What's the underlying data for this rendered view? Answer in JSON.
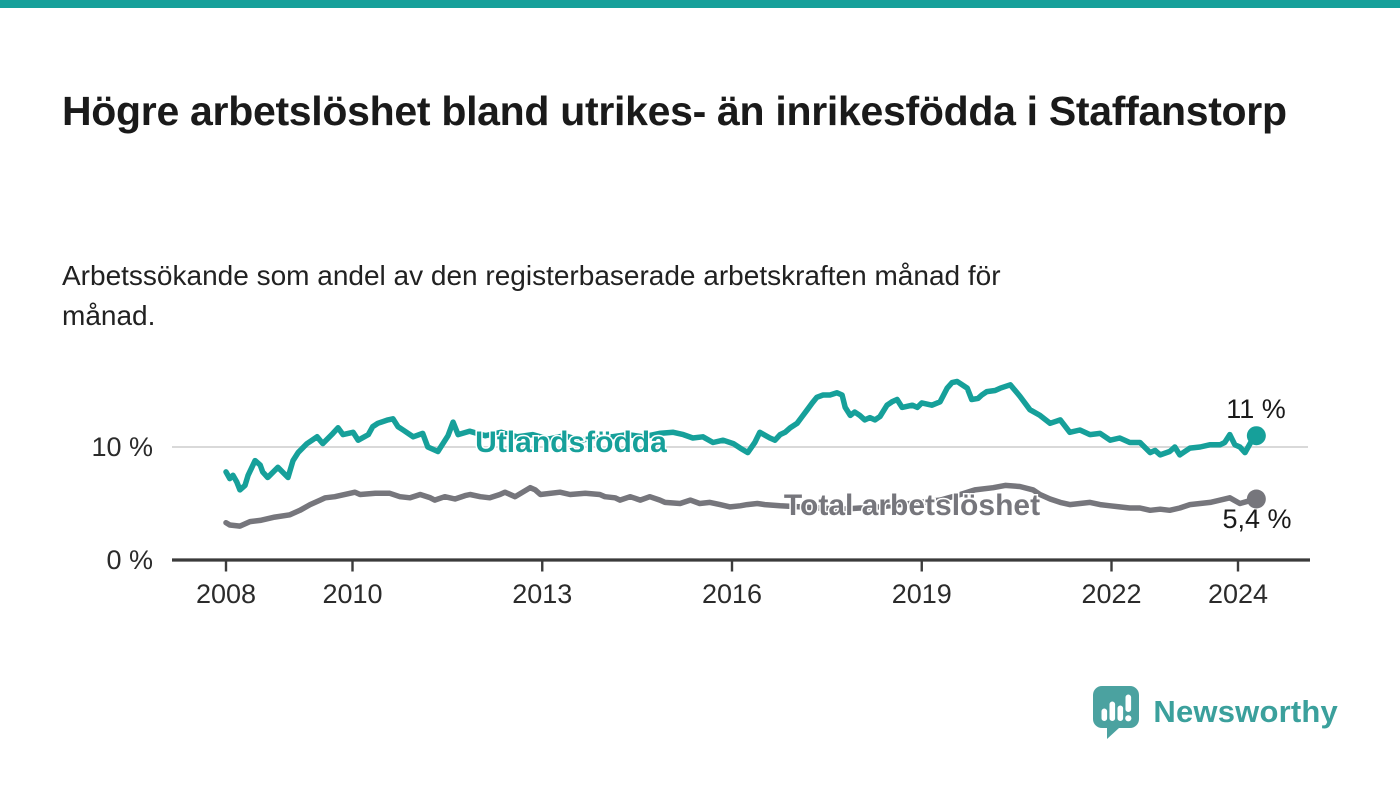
{
  "page": {
    "title": "Högre arbetslöshet bland utrikes- än inrikesfödda i Staffanstorp",
    "subtitle": "Arbetssökande som andel av den registerbaserade arbetskraften månad för månad.",
    "accent_color": "#16a09a"
  },
  "branding": {
    "logo_text": "Newsworthy",
    "logo_color": "#3ba09c",
    "logo_bubble_color": "#4ba2a0"
  },
  "chart_data": {
    "type": "line",
    "title": "Högre arbetslöshet bland utrikes- än inrikesfödda i Staffanstorp",
    "subtitle": "Arbetssökande som andel av den registerbaserade arbetskraften månad för månad.",
    "grid": "horizontal-only",
    "x_axis": {
      "ticks": [
        2008,
        2010,
        2013,
        2016,
        2019,
        2022,
        2024
      ],
      "range": [
        2008,
        2025.1
      ]
    },
    "y_axis": {
      "unit": "%",
      "ticks": [
        {
          "label": "0 %",
          "value": 0
        },
        {
          "label": "10 %",
          "value": 10
        }
      ],
      "range": [
        0,
        17.7
      ]
    },
    "series": [
      {
        "id": "total-arbetsloshet",
        "name": "Total arbetslöshet",
        "color": "#76767c",
        "end_label": "5,4 %",
        "end_value": 5.4,
        "points": [
          [
            2008.0,
            3.3
          ],
          [
            2008.06,
            3.1
          ],
          [
            2008.22,
            3.0
          ],
          [
            2008.38,
            3.4
          ],
          [
            2008.54,
            3.5
          ],
          [
            2008.77,
            3.8
          ],
          [
            2009.01,
            4.0
          ],
          [
            2009.17,
            4.4
          ],
          [
            2009.33,
            4.9
          ],
          [
            2009.49,
            5.3
          ],
          [
            2009.57,
            5.5
          ],
          [
            2009.72,
            5.6
          ],
          [
            2009.96,
            5.9
          ],
          [
            2010.04,
            6.0
          ],
          [
            2010.12,
            5.8
          ],
          [
            2010.36,
            5.9
          ],
          [
            2010.59,
            5.9
          ],
          [
            2010.75,
            5.6
          ],
          [
            2010.91,
            5.5
          ],
          [
            2011.07,
            5.8
          ],
          [
            2011.23,
            5.5
          ],
          [
            2011.3,
            5.3
          ],
          [
            2011.46,
            5.6
          ],
          [
            2011.62,
            5.4
          ],
          [
            2011.78,
            5.7
          ],
          [
            2011.86,
            5.8
          ],
          [
            2012.02,
            5.6
          ],
          [
            2012.17,
            5.5
          ],
          [
            2012.33,
            5.8
          ],
          [
            2012.41,
            6.0
          ],
          [
            2012.57,
            5.6
          ],
          [
            2012.81,
            6.4
          ],
          [
            2012.89,
            6.2
          ],
          [
            2012.97,
            5.8
          ],
          [
            2013.28,
            6.0
          ],
          [
            2013.44,
            5.8
          ],
          [
            2013.68,
            5.9
          ],
          [
            2013.91,
            5.8
          ],
          [
            2013.99,
            5.6
          ],
          [
            2014.15,
            5.5
          ],
          [
            2014.23,
            5.3
          ],
          [
            2014.39,
            5.6
          ],
          [
            2014.55,
            5.3
          ],
          [
            2014.7,
            5.6
          ],
          [
            2014.86,
            5.3
          ],
          [
            2014.94,
            5.1
          ],
          [
            2015.18,
            5.0
          ],
          [
            2015.34,
            5.3
          ],
          [
            2015.49,
            5.0
          ],
          [
            2015.65,
            5.1
          ],
          [
            2015.81,
            4.9
          ],
          [
            2015.97,
            4.7
          ],
          [
            2016.13,
            4.8
          ],
          [
            2016.24,
            4.9
          ],
          [
            2016.4,
            5.0
          ],
          [
            2016.52,
            4.9
          ],
          [
            2016.76,
            4.8
          ],
          [
            2017.08,
            4.7
          ],
          [
            2017.39,
            4.6
          ],
          [
            2017.71,
            4.5
          ],
          [
            2018.03,
            4.6
          ],
          [
            2018.34,
            4.7
          ],
          [
            2018.66,
            4.9
          ],
          [
            2018.97,
            5.1
          ],
          [
            2019.29,
            5.3
          ],
          [
            2019.61,
            5.8
          ],
          [
            2019.84,
            6.2
          ],
          [
            2020.13,
            6.4
          ],
          [
            2020.32,
            6.6
          ],
          [
            2020.55,
            6.5
          ],
          [
            2020.76,
            6.2
          ],
          [
            2020.87,
            5.8
          ],
          [
            2021.03,
            5.4
          ],
          [
            2021.19,
            5.1
          ],
          [
            2021.34,
            4.9
          ],
          [
            2021.5,
            5.0
          ],
          [
            2021.66,
            5.1
          ],
          [
            2021.82,
            4.9
          ],
          [
            2021.98,
            4.8
          ],
          [
            2022.13,
            4.7
          ],
          [
            2022.29,
            4.6
          ],
          [
            2022.45,
            4.6
          ],
          [
            2022.61,
            4.4
          ],
          [
            2022.77,
            4.5
          ],
          [
            2022.92,
            4.4
          ],
          [
            2023.08,
            4.6
          ],
          [
            2023.24,
            4.9
          ],
          [
            2023.4,
            5.0
          ],
          [
            2023.56,
            5.1
          ],
          [
            2023.72,
            5.3
          ],
          [
            2023.87,
            5.5
          ],
          [
            2024.03,
            5.0
          ],
          [
            2024.16,
            5.2
          ],
          [
            2024.29,
            5.4
          ]
        ]
      },
      {
        "id": "utlandsfodda",
        "name": "Utlandsfödda",
        "color": "#16a09a",
        "end_label": "11 %",
        "end_value": 11.0,
        "points": [
          [
            2008.0,
            7.8
          ],
          [
            2008.06,
            7.2
          ],
          [
            2008.11,
            7.5
          ],
          [
            2008.17,
            6.9
          ],
          [
            2008.22,
            6.2
          ],
          [
            2008.3,
            6.6
          ],
          [
            2008.35,
            7.5
          ],
          [
            2008.46,
            8.8
          ],
          [
            2008.54,
            8.4
          ],
          [
            2008.58,
            7.8
          ],
          [
            2008.66,
            7.3
          ],
          [
            2008.82,
            8.2
          ],
          [
            2008.98,
            7.3
          ],
          [
            2009.06,
            8.8
          ],
          [
            2009.14,
            9.5
          ],
          [
            2009.28,
            10.3
          ],
          [
            2009.44,
            10.9
          ],
          [
            2009.53,
            10.3
          ],
          [
            2009.69,
            11.2
          ],
          [
            2009.77,
            11.7
          ],
          [
            2009.85,
            11.1
          ],
          [
            2010.01,
            11.3
          ],
          [
            2010.09,
            10.6
          ],
          [
            2010.25,
            11.1
          ],
          [
            2010.32,
            11.8
          ],
          [
            2010.4,
            12.1
          ],
          [
            2010.56,
            12.4
          ],
          [
            2010.64,
            12.5
          ],
          [
            2010.72,
            11.8
          ],
          [
            2010.8,
            11.5
          ],
          [
            2010.96,
            10.9
          ],
          [
            2011.11,
            11.2
          ],
          [
            2011.19,
            10.0
          ],
          [
            2011.35,
            9.6
          ],
          [
            2011.51,
            11.0
          ],
          [
            2011.59,
            12.2
          ],
          [
            2011.67,
            11.1
          ],
          [
            2011.85,
            11.4
          ],
          [
            2012.1,
            11.0
          ],
          [
            2012.35,
            11.3
          ],
          [
            2012.6,
            10.9
          ],
          [
            2012.85,
            11.1
          ],
          [
            2013.1,
            10.7
          ],
          [
            2013.35,
            11.0
          ],
          [
            2013.6,
            10.6
          ],
          [
            2013.85,
            10.8
          ],
          [
            2014.1,
            10.9
          ],
          [
            2014.35,
            11.1
          ],
          [
            2014.6,
            10.9
          ],
          [
            2014.85,
            11.2
          ],
          [
            2015.07,
            11.3
          ],
          [
            2015.23,
            11.1
          ],
          [
            2015.38,
            10.8
          ],
          [
            2015.54,
            10.9
          ],
          [
            2015.7,
            10.4
          ],
          [
            2015.86,
            10.6
          ],
          [
            2016.02,
            10.3
          ],
          [
            2016.13,
            9.9
          ],
          [
            2016.25,
            9.5
          ],
          [
            2016.36,
            10.4
          ],
          [
            2016.44,
            11.3
          ],
          [
            2016.6,
            10.8
          ],
          [
            2016.68,
            10.6
          ],
          [
            2016.76,
            11.1
          ],
          [
            2016.84,
            11.3
          ],
          [
            2016.92,
            11.7
          ],
          [
            2017.03,
            12.1
          ],
          [
            2017.11,
            12.7
          ],
          [
            2017.19,
            13.3
          ],
          [
            2017.27,
            13.9
          ],
          [
            2017.34,
            14.4
          ],
          [
            2017.44,
            14.6
          ],
          [
            2017.55,
            14.6
          ],
          [
            2017.66,
            14.8
          ],
          [
            2017.74,
            14.6
          ],
          [
            2017.79,
            13.5
          ],
          [
            2017.87,
            12.8
          ],
          [
            2017.94,
            13.1
          ],
          [
            2018.02,
            12.8
          ],
          [
            2018.1,
            12.4
          ],
          [
            2018.18,
            12.6
          ],
          [
            2018.26,
            12.4
          ],
          [
            2018.34,
            12.7
          ],
          [
            2018.45,
            13.7
          ],
          [
            2018.53,
            14.0
          ],
          [
            2018.61,
            14.2
          ],
          [
            2018.69,
            13.5
          ],
          [
            2018.85,
            13.7
          ],
          [
            2018.93,
            13.5
          ],
          [
            2019.0,
            13.9
          ],
          [
            2019.16,
            13.7
          ],
          [
            2019.29,
            14.0
          ],
          [
            2019.4,
            15.2
          ],
          [
            2019.48,
            15.7
          ],
          [
            2019.56,
            15.8
          ],
          [
            2019.64,
            15.5
          ],
          [
            2019.72,
            15.2
          ],
          [
            2019.79,
            14.2
          ],
          [
            2019.89,
            14.3
          ],
          [
            2019.95,
            14.6
          ],
          [
            2020.03,
            14.9
          ],
          [
            2020.16,
            15.0
          ],
          [
            2020.24,
            15.2
          ],
          [
            2020.4,
            15.5
          ],
          [
            2020.55,
            14.5
          ],
          [
            2020.71,
            13.3
          ],
          [
            2020.87,
            12.8
          ],
          [
            2021.03,
            12.1
          ],
          [
            2021.19,
            12.4
          ],
          [
            2021.34,
            11.3
          ],
          [
            2021.5,
            11.5
          ],
          [
            2021.66,
            11.1
          ],
          [
            2021.82,
            11.2
          ],
          [
            2021.98,
            10.6
          ],
          [
            2022.13,
            10.8
          ],
          [
            2022.29,
            10.4
          ],
          [
            2022.45,
            10.4
          ],
          [
            2022.61,
            9.5
          ],
          [
            2022.69,
            9.7
          ],
          [
            2022.77,
            9.3
          ],
          [
            2022.92,
            9.6
          ],
          [
            2023.0,
            10.0
          ],
          [
            2023.08,
            9.3
          ],
          [
            2023.24,
            9.9
          ],
          [
            2023.4,
            10.0
          ],
          [
            2023.56,
            10.2
          ],
          [
            2023.72,
            10.2
          ],
          [
            2023.79,
            10.4
          ],
          [
            2023.87,
            11.1
          ],
          [
            2023.95,
            10.2
          ],
          [
            2024.03,
            10.0
          ],
          [
            2024.11,
            9.5
          ],
          [
            2024.24,
            10.8
          ],
          [
            2024.29,
            11.0
          ]
        ]
      }
    ],
    "legend": "inline-labels-on-lines"
  }
}
